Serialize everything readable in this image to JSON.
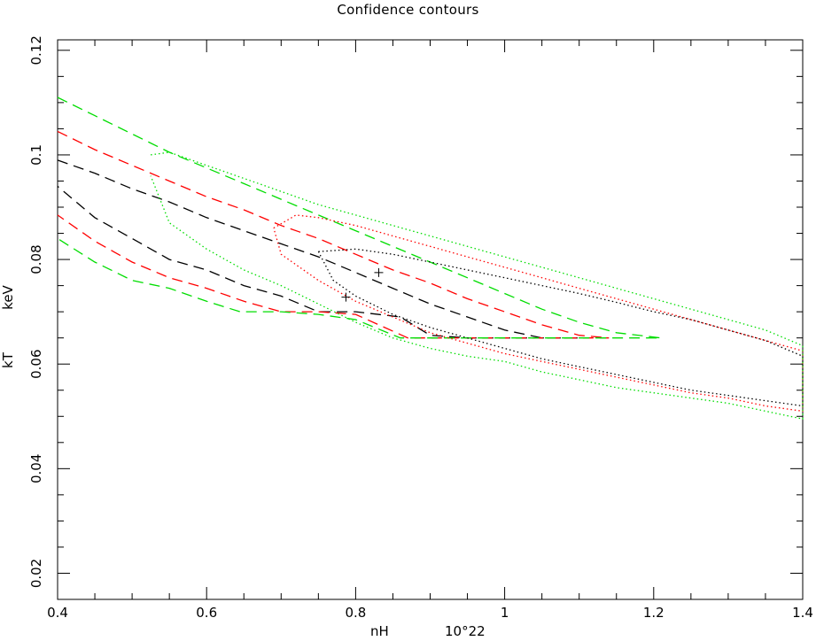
{
  "chart_data": {
    "type": "line",
    "title": "Confidence contours",
    "xlabel": "nH",
    "xlabel_unit": "10^22",
    "ylabel": "kT",
    "ylabel_unit": "keV",
    "xlim": [
      0.4,
      1.4
    ],
    "ylim": [
      0.015,
      0.122
    ],
    "xticks": [
      {
        "value": 0.4,
        "label": "0.4"
      },
      {
        "value": 0.6,
        "label": "0.6"
      },
      {
        "value": 0.8,
        "label": "0.8"
      },
      {
        "value": 1.0,
        "label": "1"
      },
      {
        "value": 1.2,
        "label": "1.2"
      },
      {
        "value": 1.4,
        "label": "1.4"
      }
    ],
    "yticks": [
      {
        "value": 0.02,
        "label": "0.02"
      },
      {
        "value": 0.04,
        "label": "0.04"
      },
      {
        "value": 0.06,
        "label": "0.06"
      },
      {
        "value": 0.08,
        "label": "0.08"
      },
      {
        "value": 0.1,
        "label": "0.1"
      },
      {
        "value": 0.12,
        "label": "0.12"
      }
    ],
    "grid": false,
    "colors": {
      "black": "#000000",
      "red": "#ff0000",
      "green": "#00dd00"
    },
    "best_fit_points": [
      {
        "x": 0.787,
        "y": 0.0728
      },
      {
        "x": 0.831,
        "y": 0.0775
      }
    ],
    "series": [
      {
        "color": "black",
        "dash": "dashed",
        "x": [
          0.4,
          0.45,
          0.5,
          0.55,
          0.6,
          0.65,
          0.7,
          0.75,
          0.8,
          0.85,
          0.9,
          0.95,
          1.0,
          1.05,
          1.1,
          1.06,
          1.0,
          0.95,
          0.9,
          0.86,
          0.8,
          0.75,
          0.7,
          0.65,
          0.6,
          0.55,
          0.5,
          0.45,
          0.4
        ],
        "y": [
          0.099,
          0.0965,
          0.0935,
          0.091,
          0.088,
          0.0855,
          0.083,
          0.0805,
          0.0775,
          0.0745,
          0.0715,
          0.069,
          0.0665,
          0.065,
          0.065,
          0.065,
          0.065,
          0.065,
          0.0655,
          0.069,
          0.07,
          0.07,
          0.073,
          0.075,
          0.078,
          0.08,
          0.084,
          0.088,
          0.094
        ]
      },
      {
        "color": "red",
        "dash": "dashed",
        "x": [
          0.4,
          0.45,
          0.5,
          0.55,
          0.6,
          0.65,
          0.7,
          0.75,
          0.8,
          0.85,
          0.9,
          0.95,
          1.0,
          1.05,
          1.1,
          1.14,
          1.05,
          1.0,
          0.95,
          0.9,
          0.87,
          0.8,
          0.75,
          0.7,
          0.65,
          0.6,
          0.55,
          0.5,
          0.45,
          0.4
        ],
        "y": [
          0.1045,
          0.101,
          0.098,
          0.095,
          0.092,
          0.0895,
          0.0865,
          0.084,
          0.081,
          0.078,
          0.0755,
          0.0725,
          0.07,
          0.0675,
          0.0655,
          0.065,
          0.065,
          0.065,
          0.065,
          0.065,
          0.065,
          0.0695,
          0.07,
          0.07,
          0.072,
          0.0745,
          0.0765,
          0.0795,
          0.0835,
          0.0885
        ]
      },
      {
        "color": "green",
        "dash": "dashed",
        "x": [
          0.4,
          0.45,
          0.5,
          0.55,
          0.6,
          0.65,
          0.7,
          0.75,
          0.8,
          0.85,
          0.9,
          0.95,
          1.0,
          1.05,
          1.1,
          1.15,
          1.21,
          1.1,
          1.0,
          0.9,
          0.86,
          0.8,
          0.75,
          0.7,
          0.645,
          0.6,
          0.55,
          0.5,
          0.45,
          0.4
        ],
        "y": [
          0.111,
          0.1075,
          0.104,
          0.1005,
          0.0975,
          0.0945,
          0.0915,
          0.0885,
          0.0855,
          0.0825,
          0.0795,
          0.0765,
          0.0735,
          0.0705,
          0.068,
          0.066,
          0.065,
          0.065,
          0.065,
          0.065,
          0.065,
          0.0685,
          0.0695,
          0.07,
          0.07,
          0.072,
          0.0745,
          0.076,
          0.0795,
          0.084
        ]
      },
      {
        "color": "black",
        "dash": "dotted",
        "x": [
          0.75,
          0.8,
          0.85,
          0.9,
          0.95,
          1.0,
          1.05,
          1.1,
          1.15,
          1.2,
          1.25,
          1.3,
          1.35,
          1.4,
          1.4,
          1.35,
          1.3,
          1.25,
          1.2,
          1.15,
          1.1,
          1.05,
          1.0,
          0.95,
          0.9,
          0.85,
          0.8,
          0.77,
          0.75
        ],
        "y": [
          0.0815,
          0.082,
          0.081,
          0.0795,
          0.078,
          0.0765,
          0.075,
          0.0735,
          0.0718,
          0.07,
          0.0685,
          0.0665,
          0.0645,
          0.0615,
          0.052,
          0.053,
          0.054,
          0.055,
          0.0565,
          0.058,
          0.0595,
          0.061,
          0.063,
          0.065,
          0.067,
          0.0695,
          0.073,
          0.076,
          0.0815
        ]
      },
      {
        "color": "red",
        "dash": "dotted",
        "x": [
          0.69,
          0.72,
          0.75,
          0.8,
          0.85,
          0.9,
          0.95,
          1.0,
          1.05,
          1.1,
          1.15,
          1.2,
          1.25,
          1.3,
          1.35,
          1.4,
          1.4,
          1.35,
          1.3,
          1.25,
          1.2,
          1.15,
          1.1,
          1.05,
          1.0,
          0.95,
          0.9,
          0.85,
          0.8,
          0.75,
          0.7,
          0.69
        ],
        "y": [
          0.086,
          0.0885,
          0.088,
          0.0865,
          0.0845,
          0.0825,
          0.0805,
          0.0785,
          0.0765,
          0.0745,
          0.0725,
          0.0705,
          0.0685,
          0.0665,
          0.0645,
          0.0625,
          0.051,
          0.052,
          0.0535,
          0.0545,
          0.056,
          0.0575,
          0.059,
          0.0605,
          0.062,
          0.064,
          0.066,
          0.069,
          0.072,
          0.076,
          0.081,
          0.086
        ]
      },
      {
        "color": "green",
        "dash": "dotted",
        "x": [
          0.525,
          0.55,
          0.6,
          0.65,
          0.7,
          0.75,
          0.8,
          0.85,
          0.9,
          0.95,
          1.0,
          1.05,
          1.1,
          1.15,
          1.2,
          1.25,
          1.3,
          1.35,
          1.4,
          1.4,
          1.35,
          1.3,
          1.25,
          1.2,
          1.15,
          1.1,
          1.05,
          1.0,
          0.95,
          0.9,
          0.85,
          0.8,
          0.75,
          0.7,
          0.65,
          0.6,
          0.55,
          0.525
        ],
        "y": [
          0.1,
          0.1005,
          0.098,
          0.0955,
          0.093,
          0.0905,
          0.0885,
          0.0865,
          0.0845,
          0.0825,
          0.0805,
          0.0785,
          0.0765,
          0.0745,
          0.0725,
          0.0705,
          0.0685,
          0.0665,
          0.0635,
          0.0495,
          0.051,
          0.0525,
          0.0535,
          0.0545,
          0.0555,
          0.057,
          0.0585,
          0.0605,
          0.0615,
          0.063,
          0.065,
          0.068,
          0.0715,
          0.075,
          0.078,
          0.082,
          0.087,
          0.096
        ]
      }
    ]
  }
}
